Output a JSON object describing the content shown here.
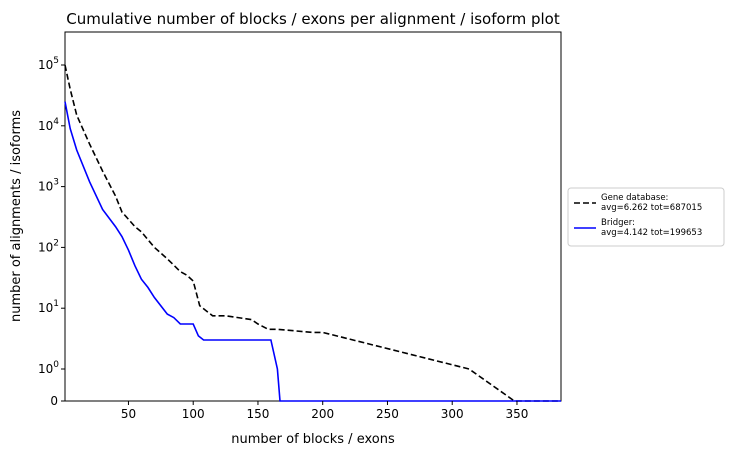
{
  "chart_data": {
    "type": "line",
    "title": "Cumulative number of blocks / exons per alignment / isoform plot",
    "xlabel": "number of blocks / exons",
    "ylabel": "number of alignments / isoforms",
    "xlim": [
      1,
      384
    ],
    "xscale": "linear",
    "yscale": "symlog",
    "ylim": [
      0,
      350000
    ],
    "x_ticks": [
      50,
      100,
      150,
      200,
      250,
      300,
      350
    ],
    "y_ticks": [
      {
        "value": 0,
        "label": "0"
      },
      {
        "value": 1,
        "label": "10",
        "exp": "0"
      },
      {
        "value": 10,
        "label": "10",
        "exp": "1"
      },
      {
        "value": 100,
        "label": "10",
        "exp": "2"
      },
      {
        "value": 1000,
        "label": "10",
        "exp": "3"
      },
      {
        "value": 10000,
        "label": "10",
        "exp": "4"
      },
      {
        "value": 100000,
        "label": "10",
        "exp": "5"
      }
    ],
    "grid": false,
    "legend_position": "outside-right",
    "series": [
      {
        "name": "Gene database:",
        "stats": "avg=6.262 tot=687015",
        "color": "#000000",
        "style": "dashed",
        "x": [
          1,
          5,
          10,
          20,
          30,
          40,
          45,
          50,
          55,
          60,
          70,
          80,
          90,
          95,
          100,
          105,
          115,
          125,
          145,
          150,
          158,
          165,
          192,
          200,
          313,
          348,
          384
        ],
        "y": [
          100000,
          40000,
          15000,
          5000,
          1800,
          700,
          380,
          290,
          220,
          180,
          100,
          65,
          40,
          35,
          28,
          11,
          7.5,
          7.5,
          6.5,
          5.5,
          4.5,
          4.5,
          4,
          4,
          1,
          0,
          0
        ]
      },
      {
        "name": "Bridger:",
        "stats": "avg=4.142 tot=199653",
        "color": "#0000ff",
        "style": "solid",
        "x": [
          1,
          5,
          10,
          20,
          30,
          40,
          45,
          50,
          55,
          60,
          65,
          70,
          80,
          85,
          90,
          100,
          104,
          108,
          160,
          165,
          167,
          384
        ],
        "y": [
          25000,
          9000,
          4000,
          1200,
          420,
          220,
          150,
          90,
          50,
          30,
          22,
          15,
          8,
          7,
          5.5,
          5.5,
          3.5,
          3,
          3,
          1,
          0,
          0
        ]
      }
    ]
  }
}
